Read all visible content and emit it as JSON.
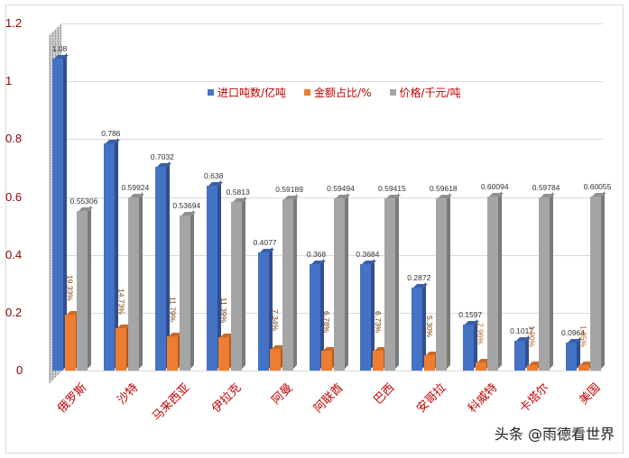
{
  "chart_data": {
    "type": "bar",
    "title": "",
    "xlabel": "",
    "ylabel": "",
    "ylim": [
      0,
      1.2
    ],
    "yticks": [
      "0",
      "0.2",
      "0.4",
      "0.6",
      "0.8",
      "1",
      "1.2"
    ],
    "grid": true,
    "legend_position": "top-inside",
    "categories": [
      "俄罗斯",
      "沙特",
      "马来西亚",
      "伊拉克",
      "阿曼",
      "阿联酋",
      "巴西",
      "安哥拉",
      "科威特",
      "卡塔尔",
      "美国"
    ],
    "series": [
      {
        "name": "进口吨数/亿吨",
        "color": "#4472c4",
        "values": [
          1.08,
          0.786,
          0.7032,
          0.638,
          0.4077,
          0.368,
          0.3684,
          0.2872,
          0.1597,
          0.1017,
          0.0964
        ],
        "labels": [
          "1.08",
          "0.786",
          "0.7032",
          "0.638",
          "0.4077",
          "0.368",
          "0.3684",
          "0.2872",
          "0.1597",
          "0.1017",
          "0.0964"
        ]
      },
      {
        "name": "金额占比/%",
        "color": "#ed7d31",
        "values": [
          0.1933,
          0.1473,
          0.1179,
          0.1139,
          0.0734,
          0.0678,
          0.0673,
          0.053,
          0.0296,
          0.019,
          0.0185
        ],
        "labels": [
          "19.33%",
          "14.73%",
          "11.79%",
          "11.39%",
          "7.34%",
          "6.78%",
          "6.73%",
          "5.30%",
          "2.96%",
          "1.90%",
          "1.85%"
        ]
      },
      {
        "name": "价格/千元/吨",
        "color": "#a5a5a5",
        "values": [
          0.55306,
          0.59924,
          0.53694,
          0.5813,
          0.59189,
          0.59494,
          0.59415,
          0.59618,
          0.60094,
          0.59784,
          0.60055
        ],
        "labels": [
          "0.55306",
          "0.59924",
          "0.53694",
          "0.5813",
          "0.59189",
          "0.59494",
          "0.59415",
          "0.59618",
          "0.60094",
          "0.59784",
          "0.60055"
        ]
      }
    ]
  },
  "legend": {
    "items": [
      {
        "label": "进口吨数/亿吨",
        "color": "#4472c4"
      },
      {
        "label": "金额占比/%",
        "color": "#ed7d31"
      },
      {
        "label": "价格/千元/吨",
        "color": "#a5a5a5"
      }
    ]
  },
  "watermark": "头条 @雨德看世界"
}
